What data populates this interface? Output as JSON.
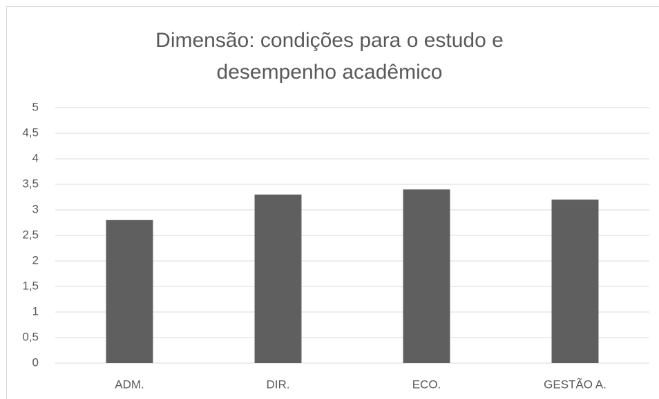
{
  "chart_data": {
    "type": "bar",
    "title": "Dimensão: condições para o estudo e desempenho acadêmico",
    "categories": [
      "ADM.",
      "DIR.",
      "ECO.",
      "GESTÃO A."
    ],
    "values": [
      2.8,
      3.3,
      3.4,
      3.2
    ],
    "color": "#5f5f5f",
    "ylim": [
      0,
      5
    ],
    "yticks": [
      0,
      {
        "value": 0.5,
        "label": "0,5"
      },
      1,
      {
        "value": 1.5,
        "label": "1,5"
      },
      2,
      {
        "value": 2.5,
        "label": "2,5"
      },
      3,
      {
        "value": 3.5,
        "label": "3,5"
      },
      4,
      {
        "value": 4.5,
        "label": "4,5"
      },
      5
    ],
    "grid": true
  }
}
